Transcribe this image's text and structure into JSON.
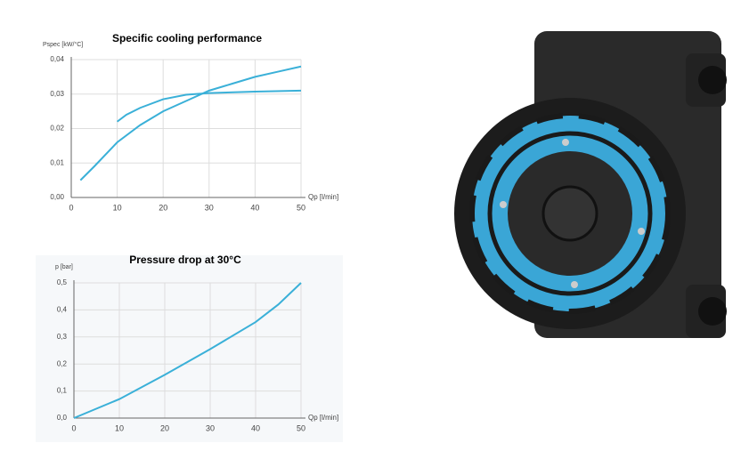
{
  "chart_data": [
    {
      "type": "line",
      "title": "Specific cooling performance",
      "y_label": "Pspec [kW/°C]",
      "x_label": "Qp [l/min]",
      "xlim": [
        0,
        50
      ],
      "xticks": [
        0,
        10,
        20,
        30,
        40,
        50
      ],
      "ylim": [
        0,
        0.04
      ],
      "yticks": [
        {
          "value": 0,
          "label": "0,00"
        },
        {
          "value": 0.01,
          "label": "0,01"
        },
        {
          "value": 0.02,
          "label": "0,02"
        },
        {
          "value": 0.03,
          "label": "0,03"
        },
        {
          "value": 0.04,
          "label": "0,04"
        }
      ],
      "grid": true,
      "series": [
        {
          "color": "#3ab0d8",
          "x": [
            2,
            5,
            10,
            15,
            20,
            25,
            30,
            35,
            40,
            45,
            50
          ],
          "values": [
            0.005,
            0.009,
            0.016,
            0.021,
            0.025,
            0.028,
            0.031,
            0.033,
            0.035,
            0.0365,
            0.038
          ]
        },
        {
          "color": "#3ab0d8",
          "x": [
            10,
            12,
            15,
            20,
            25,
            30,
            40,
            50
          ],
          "values": [
            0.022,
            0.024,
            0.026,
            0.0285,
            0.0298,
            0.0303,
            0.0307,
            0.031
          ]
        }
      ]
    },
    {
      "type": "line",
      "title": "Pressure drop at 30°C",
      "y_label": "p [bar]",
      "x_label": "Qp [l/min]",
      "xlim": [
        0,
        50
      ],
      "xticks": [
        0,
        10,
        20,
        30,
        40,
        50
      ],
      "ylim": [
        0,
        0.5
      ],
      "yticks": [
        {
          "value": 0,
          "label": "0,0"
        },
        {
          "value": 0.1,
          "label": "0,1"
        },
        {
          "value": 0.2,
          "label": "0,2"
        },
        {
          "value": 0.3,
          "label": "0,3"
        },
        {
          "value": 0.4,
          "label": "0,4"
        },
        {
          "value": 0.5,
          "label": "0,5"
        }
      ],
      "grid": true,
      "series": [
        {
          "color": "#3ab0d8",
          "x": [
            0,
            10,
            20,
            30,
            40,
            45,
            50
          ],
          "values": [
            0,
            0.07,
            0.16,
            0.255,
            0.355,
            0.42,
            0.5
          ]
        }
      ]
    }
  ]
}
